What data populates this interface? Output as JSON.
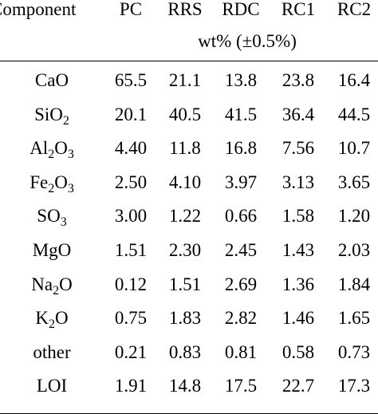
{
  "header": {
    "component_label": "Component",
    "columns": [
      "PC",
      "RRS",
      "RDC",
      "RC1",
      "RC2"
    ],
    "units": "wt% (±0.5%)"
  },
  "rows": [
    {
      "name": "CaO",
      "name_parts": [
        "CaO"
      ],
      "values": [
        "65.5",
        "21.1",
        "13.8",
        "23.8",
        "16.4"
      ]
    },
    {
      "name": "SiO2",
      "name_parts": [
        "SiO",
        "2",
        ""
      ],
      "values": [
        "20.1",
        "40.5",
        "41.5",
        "36.4",
        "44.5"
      ]
    },
    {
      "name": "Al2O3",
      "name_parts": [
        "Al",
        "2",
        "O",
        "3"
      ],
      "values": [
        "4.40",
        "11.8",
        "16.8",
        "7.56",
        "10.7"
      ]
    },
    {
      "name": "Fe2O3",
      "name_parts": [
        "Fe",
        "2",
        "O",
        "3"
      ],
      "values": [
        "2.50",
        "4.10",
        "3.97",
        "3.13",
        "3.65"
      ]
    },
    {
      "name": "SO3",
      "name_parts": [
        "SO",
        "3"
      ],
      "values": [
        "3.00",
        "1.22",
        "0.66",
        "1.58",
        "1.20"
      ]
    },
    {
      "name": "MgO",
      "name_parts": [
        "MgO"
      ],
      "values": [
        "1.51",
        "2.30",
        "2.45",
        "1.43",
        "2.03"
      ]
    },
    {
      "name": "Na2O",
      "name_parts": [
        "Na",
        "2",
        "O"
      ],
      "values": [
        "0.12",
        "1.51",
        "2.69",
        "1.36",
        "1.84"
      ]
    },
    {
      "name": "K2O",
      "name_parts": [
        "K",
        "2",
        "O"
      ],
      "values": [
        "0.75",
        "1.83",
        "2.82",
        "1.46",
        "1.65"
      ]
    },
    {
      "name": "other",
      "name_parts": [
        "other"
      ],
      "values": [
        "0.21",
        "0.83",
        "0.81",
        "0.58",
        "0.73"
      ]
    },
    {
      "name": "LOI",
      "name_parts": [
        "LOI"
      ],
      "values": [
        "1.91",
        "14.8",
        "17.5",
        "22.7",
        "17.3"
      ]
    }
  ]
}
